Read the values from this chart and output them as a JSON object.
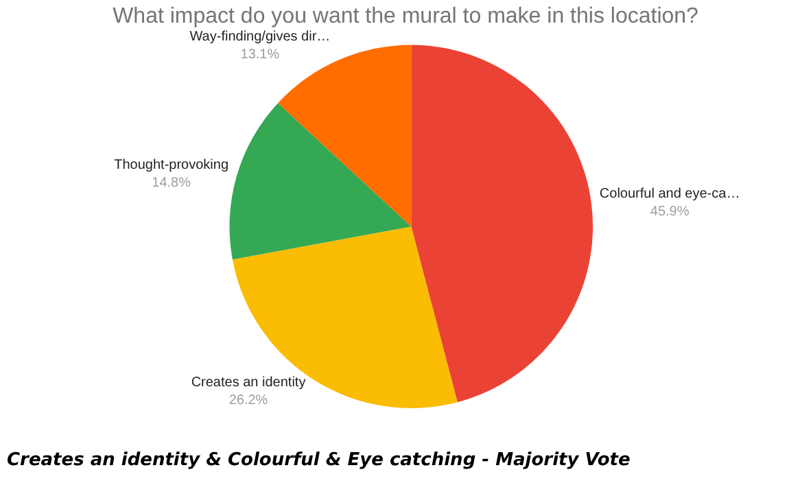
{
  "chart_data": {
    "type": "pie",
    "title": "What impact do you want the mural to make in this location?",
    "categories": [
      "Colourful and eye-ca…",
      "Creates an identity",
      "Thought-provoking",
      "Way-finding/gives dir…"
    ],
    "values": [
      45.9,
      26.2,
      14.8,
      13.1
    ],
    "value_labels": [
      "45.9%",
      "26.2%",
      "14.8%",
      "13.1%"
    ],
    "colors": [
      "#ea4335",
      "#fbbc04",
      "#34a853",
      "#ff6d01"
    ],
    "legend": false,
    "annotations": [
      "Creates an identity & Colourful & Eye catching - Majority Vote"
    ]
  }
}
